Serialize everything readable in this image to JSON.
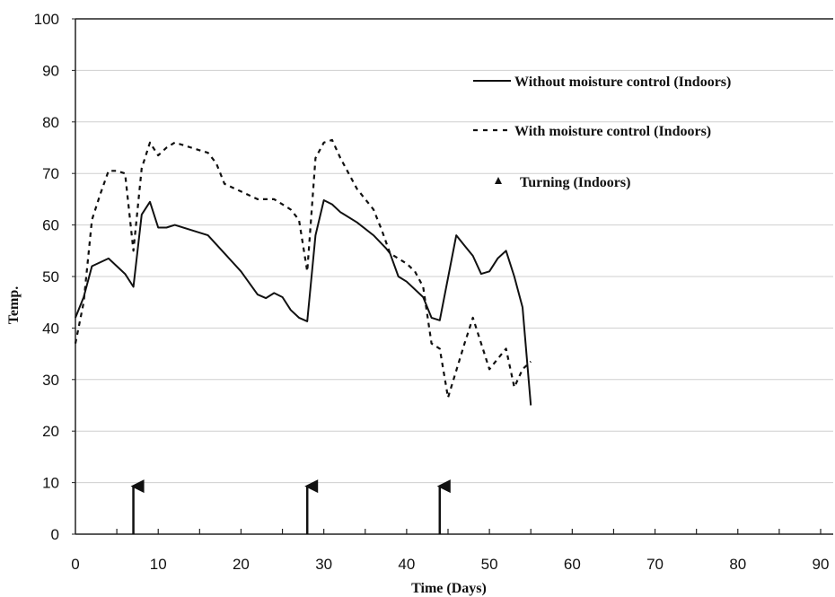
{
  "chart_data": {
    "type": "line",
    "title": "",
    "xlabel": "Time (Days)",
    "ylabel": "Temp.",
    "xlim": [
      0,
      90
    ],
    "ylim": [
      0,
      100
    ],
    "x_ticks": [
      "0",
      "10",
      "20",
      "30",
      "40",
      "50",
      "60",
      "70",
      "80",
      "90"
    ],
    "y_ticks": [
      "0",
      "10",
      "20",
      "30",
      "40",
      "50",
      "60",
      "70",
      "80",
      "90",
      "100"
    ],
    "grid": "horizontal",
    "legend_position": "top-right",
    "series": [
      {
        "name": "Without moisture control (Indoors)",
        "style": "solid",
        "color": "#111111",
        "points": [
          [
            0,
            42
          ],
          [
            1,
            46
          ],
          [
            2,
            52
          ],
          [
            4,
            53.5
          ],
          [
            5,
            52
          ],
          [
            6,
            50.5
          ],
          [
            7,
            48
          ],
          [
            8,
            62
          ],
          [
            9,
            64.5
          ],
          [
            10,
            59.5
          ],
          [
            11,
            59.5
          ],
          [
            12,
            60
          ],
          [
            14,
            59
          ],
          [
            16,
            58
          ],
          [
            18,
            54.5
          ],
          [
            20,
            51
          ],
          [
            22,
            46.5
          ],
          [
            23,
            45.8
          ],
          [
            24,
            46.8
          ],
          [
            25,
            46
          ],
          [
            26,
            43.5
          ],
          [
            27,
            42
          ],
          [
            28,
            41.3
          ],
          [
            29,
            58
          ],
          [
            30,
            64.8
          ],
          [
            31,
            64
          ],
          [
            32,
            62.5
          ],
          [
            34,
            60.5
          ],
          [
            36,
            58
          ],
          [
            37.5,
            55.5
          ],
          [
            38,
            54.5
          ],
          [
            39,
            50
          ],
          [
            40,
            49
          ],
          [
            42,
            46
          ],
          [
            43,
            42
          ],
          [
            44,
            41.5
          ],
          [
            46,
            58
          ],
          [
            47,
            56
          ],
          [
            48,
            54
          ],
          [
            49,
            50.5
          ],
          [
            50,
            51
          ],
          [
            51,
            53.5
          ],
          [
            52,
            55
          ],
          [
            53,
            50
          ],
          [
            54,
            44
          ],
          [
            55,
            25
          ]
        ]
      },
      {
        "name": "With moisture control (Indoors)",
        "style": "dashed",
        "color": "#111111",
        "points": [
          [
            0,
            37
          ],
          [
            1,
            45
          ],
          [
            2,
            61
          ],
          [
            3,
            66
          ],
          [
            4,
            70.5
          ],
          [
            5,
            70.5
          ],
          [
            6,
            70
          ],
          [
            7,
            55
          ],
          [
            8,
            71
          ],
          [
            9,
            76
          ],
          [
            10,
            73.5
          ],
          [
            11,
            75
          ],
          [
            12,
            76
          ],
          [
            14,
            75
          ],
          [
            16,
            74
          ],
          [
            17,
            72
          ],
          [
            18,
            68
          ],
          [
            20,
            66.5
          ],
          [
            22,
            65
          ],
          [
            24,
            65
          ],
          [
            26,
            63
          ],
          [
            27,
            61
          ],
          [
            28,
            51
          ],
          [
            29,
            73
          ],
          [
            30,
            76
          ],
          [
            31,
            76.5
          ],
          [
            32,
            73
          ],
          [
            34,
            67
          ],
          [
            36,
            63
          ],
          [
            37,
            59
          ],
          [
            38,
            54.5
          ],
          [
            40,
            52.5
          ],
          [
            41,
            51
          ],
          [
            42,
            48
          ],
          [
            43,
            37
          ],
          [
            44,
            36
          ],
          [
            45,
            26.5
          ],
          [
            47,
            37
          ],
          [
            48,
            42
          ],
          [
            49,
            37
          ],
          [
            50,
            32
          ],
          [
            51,
            34
          ],
          [
            52,
            36
          ],
          [
            53,
            28.5
          ],
          [
            54,
            32
          ],
          [
            55,
            33.5
          ]
        ]
      },
      {
        "name": "Turning (Indoors)",
        "style": "arrow-marker",
        "color": "#111111",
        "x": [
          7,
          28,
          44
        ],
        "y": [
          10,
          10,
          10
        ]
      }
    ]
  }
}
